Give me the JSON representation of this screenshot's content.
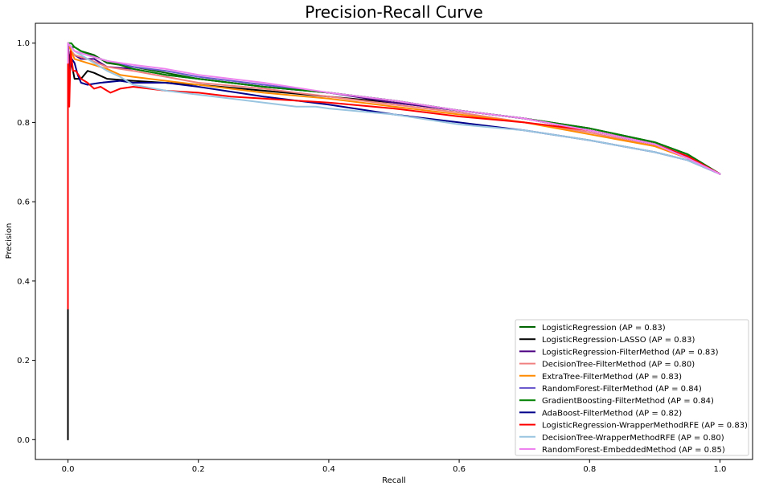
{
  "chart_data": {
    "type": "line",
    "title": "Precision-Recall Curve",
    "xlabel": "Recall",
    "ylabel": "Precision",
    "xlim": [
      -0.05,
      1.05
    ],
    "ylim": [
      -0.05,
      1.05
    ],
    "xticks": [
      0.0,
      0.2,
      0.4,
      0.6,
      0.8,
      1.0
    ],
    "yticks": [
      0.0,
      0.2,
      0.4,
      0.6,
      0.8,
      1.0
    ],
    "xtick_labels": [
      "0.0",
      "0.2",
      "0.4",
      "0.6",
      "0.8",
      "1.0"
    ],
    "ytick_labels": [
      "0.0",
      "0.2",
      "0.4",
      "0.6",
      "0.8",
      "1.0"
    ],
    "grid": false,
    "legend_position": "lower-right",
    "series": [
      {
        "name": "LogisticRegression (AP = 0.83)",
        "color": "#006400",
        "x": [
          0,
          0,
          0.005,
          0.01,
          0.02,
          0.04,
          0.06,
          0.1,
          0.15,
          0.2,
          0.3,
          0.4,
          0.5,
          0.6,
          0.7,
          0.8,
          0.9,
          0.95,
          1.0
        ],
        "y": [
          0.8,
          1.0,
          0.99,
          0.99,
          0.98,
          0.97,
          0.95,
          0.94,
          0.925,
          0.91,
          0.89,
          0.875,
          0.855,
          0.83,
          0.81,
          0.78,
          0.745,
          0.715,
          0.67
        ]
      },
      {
        "name": "LogisticRegression-LASSO (AP = 0.83)",
        "color": "#000000",
        "x": [
          0,
          0,
          0,
          0.003,
          0.01,
          0.02,
          0.03,
          0.04,
          0.06,
          0.1,
          0.2,
          0.3,
          0.4,
          0.5,
          0.6,
          0.7,
          0.8,
          0.9,
          0.95,
          1.0
        ],
        "y": [
          0.0,
          0.33,
          0.95,
          0.97,
          0.91,
          0.91,
          0.93,
          0.925,
          0.91,
          0.905,
          0.895,
          0.88,
          0.865,
          0.85,
          0.83,
          0.81,
          0.785,
          0.75,
          0.72,
          0.67
        ]
      },
      {
        "name": "LogisticRegression-FilterMethod (AP = 0.83)",
        "color": "#4B0082",
        "x": [
          0,
          0,
          0.005,
          0.01,
          0.02,
          0.04,
          0.06,
          0.1,
          0.15,
          0.2,
          0.3,
          0.4,
          0.5,
          0.6,
          0.7,
          0.8,
          0.9,
          0.95,
          1.0
        ],
        "y": [
          0.85,
          1.0,
          0.98,
          0.97,
          0.96,
          0.96,
          0.94,
          0.935,
          0.92,
          0.91,
          0.89,
          0.875,
          0.85,
          0.83,
          0.81,
          0.78,
          0.745,
          0.715,
          0.67
        ]
      },
      {
        "name": "DecisionTree-FilterMethod (AP = 0.80)",
        "color": "#F08080",
        "x": [
          0,
          0,
          0.005,
          0.01,
          0.03,
          0.06,
          0.1,
          0.15,
          0.2,
          0.3,
          0.4,
          0.5,
          0.6,
          0.7,
          0.8,
          0.9,
          0.95,
          1.0
        ],
        "y": [
          0.88,
          1.0,
          0.98,
          0.97,
          0.96,
          0.94,
          0.93,
          0.915,
          0.9,
          0.885,
          0.865,
          0.845,
          0.825,
          0.8,
          0.775,
          0.74,
          0.71,
          0.67
        ]
      },
      {
        "name": "ExtraTree-FilterMethod (AP = 0.83)",
        "color": "#FF8C00",
        "x": [
          0,
          0,
          0.005,
          0.01,
          0.03,
          0.06,
          0.08,
          0.1,
          0.15,
          0.2,
          0.3,
          0.4,
          0.5,
          0.6,
          0.7,
          0.8,
          0.9,
          0.95,
          1.0
        ],
        "y": [
          0.87,
          1.0,
          0.98,
          0.96,
          0.95,
          0.935,
          0.92,
          0.915,
          0.905,
          0.895,
          0.875,
          0.86,
          0.84,
          0.82,
          0.8,
          0.77,
          0.74,
          0.71,
          0.67
        ]
      },
      {
        "name": "RandomForest-FilterMethod (AP = 0.84)",
        "color": "#6A5ACD",
        "x": [
          0,
          0,
          0.005,
          0.01,
          0.03,
          0.06,
          0.1,
          0.15,
          0.2,
          0.3,
          0.4,
          0.5,
          0.6,
          0.7,
          0.8,
          0.9,
          0.95,
          1.0
        ],
        "y": [
          0.9,
          1.0,
          0.99,
          0.98,
          0.97,
          0.955,
          0.94,
          0.93,
          0.915,
          0.895,
          0.875,
          0.855,
          0.83,
          0.81,
          0.78,
          0.745,
          0.715,
          0.67
        ]
      },
      {
        "name": "GradientBoosting-FilterMethod (AP = 0.84)",
        "color": "#008000",
        "x": [
          0,
          0,
          0.005,
          0.01,
          0.02,
          0.04,
          0.06,
          0.1,
          0.15,
          0.2,
          0.3,
          0.4,
          0.5,
          0.6,
          0.7,
          0.8,
          0.9,
          0.95,
          1.0
        ],
        "y": [
          0.9,
          1.0,
          1.0,
          0.99,
          0.98,
          0.965,
          0.955,
          0.935,
          0.92,
          0.91,
          0.89,
          0.875,
          0.855,
          0.83,
          0.81,
          0.785,
          0.75,
          0.72,
          0.67
        ]
      },
      {
        "name": "AdaBoost-FilterMethod (AP = 0.82)",
        "color": "#00008B",
        "x": [
          0,
          0,
          0.003,
          0.006,
          0.01,
          0.015,
          0.02,
          0.03,
          0.05,
          0.08,
          0.1,
          0.15,
          0.2,
          0.3,
          0.4,
          0.5,
          0.6,
          0.7,
          0.8,
          0.9,
          0.95,
          1.0
        ],
        "y": [
          0.85,
          1.0,
          0.93,
          0.96,
          0.95,
          0.92,
          0.9,
          0.895,
          0.9,
          0.905,
          0.9,
          0.9,
          0.89,
          0.865,
          0.845,
          0.82,
          0.8,
          0.78,
          0.755,
          0.725,
          0.705,
          0.67
        ]
      },
      {
        "name": "LogisticRegression-WrapperMethodRFE (AP = 0.83)",
        "color": "#FF0000",
        "x": [
          0,
          0,
          0.002,
          0.004,
          0.008,
          0.012,
          0.02,
          0.03,
          0.04,
          0.05,
          0.065,
          0.08,
          0.1,
          0.15,
          0.2,
          0.25,
          0.3,
          0.4,
          0.5,
          0.6,
          0.7,
          0.8,
          0.9,
          0.95,
          1.0
        ],
        "y": [
          0.33,
          1.0,
          0.84,
          0.98,
          0.93,
          0.93,
          0.91,
          0.9,
          0.885,
          0.89,
          0.875,
          0.885,
          0.89,
          0.88,
          0.875,
          0.865,
          0.86,
          0.85,
          0.835,
          0.815,
          0.8,
          0.78,
          0.745,
          0.715,
          0.67
        ]
      },
      {
        "name": "DecisionTree-WrapperMethodRFE (AP = 0.80)",
        "color": "#9AC5E0",
        "x": [
          0,
          0.005,
          0.01,
          0.03,
          0.06,
          0.08,
          0.1,
          0.15,
          0.2,
          0.25,
          0.3,
          0.35,
          0.38,
          0.4,
          0.5,
          0.6,
          0.7,
          0.8,
          0.9,
          0.95,
          1.0
        ],
        "y": [
          1.0,
          0.99,
          0.98,
          0.96,
          0.93,
          0.915,
          0.895,
          0.88,
          0.87,
          0.86,
          0.85,
          0.84,
          0.84,
          0.835,
          0.82,
          0.795,
          0.78,
          0.755,
          0.725,
          0.705,
          0.67
        ]
      },
      {
        "name": "RandomForest-EmbeddedMethod (AP = 0.85)",
        "color": "#EE82EE",
        "x": [
          0,
          0,
          0.005,
          0.01,
          0.03,
          0.06,
          0.1,
          0.15,
          0.2,
          0.3,
          0.4,
          0.5,
          0.6,
          0.7,
          0.8,
          0.9,
          0.95,
          1.0
        ],
        "y": [
          0.95,
          1.0,
          0.99,
          0.98,
          0.97,
          0.955,
          0.945,
          0.935,
          0.92,
          0.9,
          0.875,
          0.855,
          0.83,
          0.81,
          0.78,
          0.745,
          0.71,
          0.67
        ]
      }
    ]
  }
}
